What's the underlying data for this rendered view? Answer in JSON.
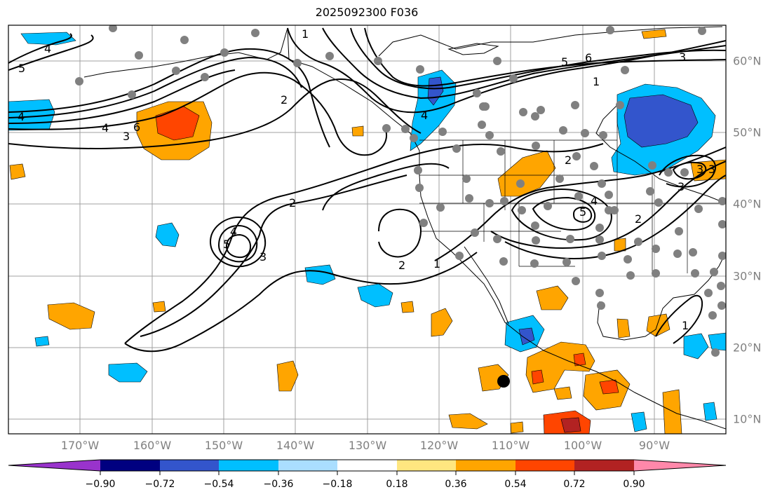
{
  "title": "2025092300 F036",
  "map": {
    "projection": "Miller / equidistant",
    "extent": {
      "lon_min": -180,
      "lon_max": -80,
      "lat_min": 8,
      "lat_max": 65
    },
    "longitude_labels": [
      "170°W",
      "160°W",
      "150°W",
      "140°W",
      "130°W",
      "120°W",
      "110°W",
      "100°W",
      "90°W"
    ],
    "latitude_labels": [
      "60°N",
      "50°N",
      "40°N",
      "30°N",
      "20°N",
      "10°N"
    ],
    "gridline_color": "#a0a0a0",
    "contour_color": "#000000",
    "contour_labels": [
      "5",
      "4",
      "6",
      "3",
      "2",
      "1",
      "2",
      "6",
      "5",
      "4",
      "3",
      "1",
      "2",
      "3",
      "4",
      "5",
      "4",
      "3",
      "2",
      "1",
      "2",
      "5",
      "4",
      "3",
      "1",
      "3",
      "4"
    ],
    "marker": "black storm-center dot near 15°N 111°W"
  },
  "colorbar": {
    "tick_labels": [
      "−0.90",
      "−0.72",
      "−0.54",
      "−0.36",
      "−0.18",
      "0.18",
      "0.36",
      "0.54",
      "0.72",
      "0.90"
    ],
    "colors": [
      "#9933cc",
      "#000080",
      "#3355cc",
      "#00bfff",
      "#aadeff",
      "#ffffff",
      "#ffe680",
      "#ffa500",
      "#ff4500",
      "#b22222",
      "#ff88aa"
    ]
  }
}
